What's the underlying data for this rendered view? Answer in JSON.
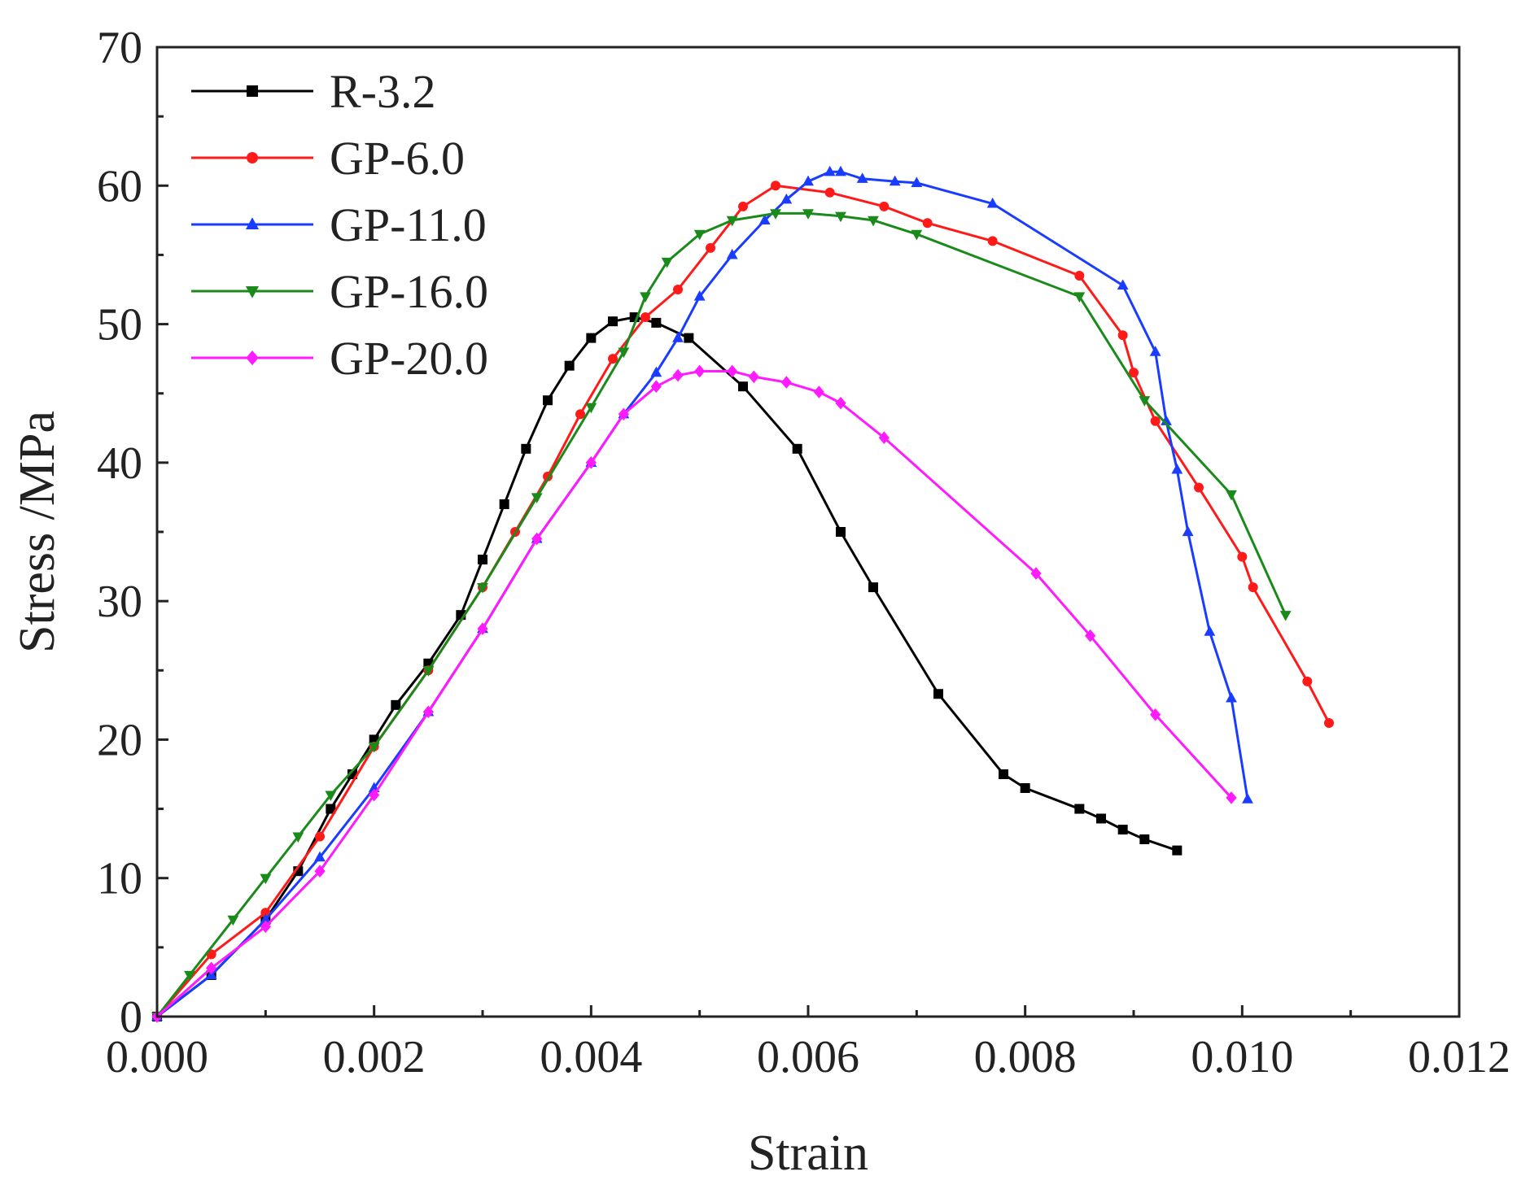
{
  "chart_data": {
    "type": "line",
    "title": "",
    "xlabel": "Strain",
    "ylabel": "Stress /MPa",
    "xlim": [
      0,
      0.012
    ],
    "ylim": [
      0,
      70
    ],
    "x_ticks": [
      0,
      0.002,
      0.004,
      0.006,
      0.008,
      0.01,
      0.012
    ],
    "x_tick_labels": [
      "0.000",
      "0.002",
      "0.004",
      "0.006",
      "0.008",
      "0.010",
      "0.012"
    ],
    "y_ticks": [
      0,
      10,
      20,
      30,
      40,
      50,
      60,
      70
    ],
    "y_tick_labels": [
      "0",
      "10",
      "20",
      "30",
      "40",
      "50",
      "60",
      "70"
    ],
    "grid": false,
    "legend_position": "top-left",
    "series": [
      {
        "name": "R-3.2",
        "color": "#000000",
        "marker": "square",
        "points": [
          [
            0,
            0
          ],
          [
            0.0005,
            3
          ],
          [
            0.001,
            7
          ],
          [
            0.0013,
            10.5
          ],
          [
            0.0016,
            15
          ],
          [
            0.0018,
            17.5
          ],
          [
            0.002,
            20
          ],
          [
            0.0022,
            22.5
          ],
          [
            0.0025,
            25.5
          ],
          [
            0.0028,
            29
          ],
          [
            0.003,
            33
          ],
          [
            0.0032,
            37
          ],
          [
            0.0034,
            41
          ],
          [
            0.0036,
            44.5
          ],
          [
            0.0038,
            47
          ],
          [
            0.004,
            49
          ],
          [
            0.0042,
            50.2
          ],
          [
            0.0044,
            50.5
          ],
          [
            0.0046,
            50.1
          ],
          [
            0.0049,
            49
          ],
          [
            0.0054,
            45.5
          ],
          [
            0.0059,
            41
          ],
          [
            0.0063,
            35
          ],
          [
            0.0066,
            31
          ],
          [
            0.0072,
            23.3
          ],
          [
            0.0078,
            17.5
          ],
          [
            0.008,
            16.5
          ],
          [
            0.0085,
            15
          ],
          [
            0.0087,
            14.3
          ],
          [
            0.0089,
            13.5
          ],
          [
            0.0091,
            12.8
          ],
          [
            0.0094,
            12
          ]
        ]
      },
      {
        "name": "GP-6.0",
        "color": "#ff1a1a",
        "marker": "circle",
        "points": [
          [
            0,
            0
          ],
          [
            0.0005,
            4.5
          ],
          [
            0.001,
            7.5
          ],
          [
            0.0015,
            13
          ],
          [
            0.002,
            19.5
          ],
          [
            0.0025,
            25
          ],
          [
            0.003,
            31
          ],
          [
            0.0033,
            35
          ],
          [
            0.0036,
            39
          ],
          [
            0.0039,
            43.5
          ],
          [
            0.0042,
            47.5
          ],
          [
            0.0045,
            50.5
          ],
          [
            0.0048,
            52.5
          ],
          [
            0.0051,
            55.5
          ],
          [
            0.0054,
            58.5
          ],
          [
            0.0057,
            60
          ],
          [
            0.0062,
            59.5
          ],
          [
            0.0067,
            58.5
          ],
          [
            0.0071,
            57.3
          ],
          [
            0.0077,
            56
          ],
          [
            0.0085,
            53.5
          ],
          [
            0.0089,
            49.2
          ],
          [
            0.009,
            46.5
          ],
          [
            0.0092,
            43
          ],
          [
            0.0096,
            38.2
          ],
          [
            0.01,
            33.2
          ],
          [
            0.0101,
            31
          ],
          [
            0.0106,
            24.2
          ],
          [
            0.0108,
            21.2
          ]
        ]
      },
      {
        "name": "GP-11.0",
        "color": "#1a3cff",
        "marker": "triangle-up",
        "points": [
          [
            0,
            0
          ],
          [
            0.0005,
            3
          ],
          [
            0.001,
            7
          ],
          [
            0.0015,
            11.5
          ],
          [
            0.002,
            16.5
          ],
          [
            0.0025,
            22
          ],
          [
            0.003,
            28
          ],
          [
            0.0035,
            34.5
          ],
          [
            0.004,
            40
          ],
          [
            0.0043,
            43.5
          ],
          [
            0.0046,
            46.5
          ],
          [
            0.0048,
            49
          ],
          [
            0.005,
            52
          ],
          [
            0.0053,
            55
          ],
          [
            0.0056,
            57.5
          ],
          [
            0.0058,
            59
          ],
          [
            0.006,
            60.3
          ],
          [
            0.0062,
            61
          ],
          [
            0.0063,
            61
          ],
          [
            0.0065,
            60.5
          ],
          [
            0.0068,
            60.3
          ],
          [
            0.007,
            60.2
          ],
          [
            0.0077,
            58.7
          ],
          [
            0.0089,
            52.8
          ],
          [
            0.0092,
            48
          ],
          [
            0.0093,
            43
          ],
          [
            0.0094,
            39.5
          ],
          [
            0.0095,
            35
          ],
          [
            0.0097,
            27.8
          ],
          [
            0.0099,
            23
          ],
          [
            0.01005,
            15.7
          ]
        ]
      },
      {
        "name": "GP-16.0",
        "color": "#1a8a1a",
        "marker": "triangle-down",
        "points": [
          [
            0,
            0
          ],
          [
            0.0003,
            3
          ],
          [
            0.0007,
            7
          ],
          [
            0.001,
            10
          ],
          [
            0.0013,
            13
          ],
          [
            0.0016,
            16
          ],
          [
            0.002,
            19.5
          ],
          [
            0.0025,
            25
          ],
          [
            0.003,
            31
          ],
          [
            0.0035,
            37.5
          ],
          [
            0.004,
            44
          ],
          [
            0.0043,
            48
          ],
          [
            0.0045,
            52
          ],
          [
            0.0047,
            54.5
          ],
          [
            0.005,
            56.5
          ],
          [
            0.0053,
            57.5
          ],
          [
            0.0057,
            58
          ],
          [
            0.006,
            58
          ],
          [
            0.0063,
            57.8
          ],
          [
            0.0066,
            57.5
          ],
          [
            0.007,
            56.5
          ],
          [
            0.0085,
            52
          ],
          [
            0.0091,
            44.5
          ],
          [
            0.0099,
            37.7
          ],
          [
            0.0104,
            29
          ]
        ]
      },
      {
        "name": "GP-20.0",
        "color": "#ff1aff",
        "marker": "diamond",
        "points": [
          [
            0,
            0
          ],
          [
            0.0005,
            3.5
          ],
          [
            0.001,
            6.5
          ],
          [
            0.0015,
            10.5
          ],
          [
            0.002,
            16
          ],
          [
            0.0025,
            22
          ],
          [
            0.003,
            28
          ],
          [
            0.0035,
            34.5
          ],
          [
            0.004,
            40
          ],
          [
            0.0043,
            43.5
          ],
          [
            0.0046,
            45.5
          ],
          [
            0.0048,
            46.3
          ],
          [
            0.005,
            46.6
          ],
          [
            0.0053,
            46.6
          ],
          [
            0.0055,
            46.2
          ],
          [
            0.0058,
            45.8
          ],
          [
            0.0061,
            45.1
          ],
          [
            0.0063,
            44.3
          ],
          [
            0.0067,
            41.8
          ],
          [
            0.0081,
            32
          ],
          [
            0.0086,
            27.5
          ],
          [
            0.0092,
            21.8
          ],
          [
            0.0099,
            15.8
          ]
        ]
      }
    ]
  }
}
